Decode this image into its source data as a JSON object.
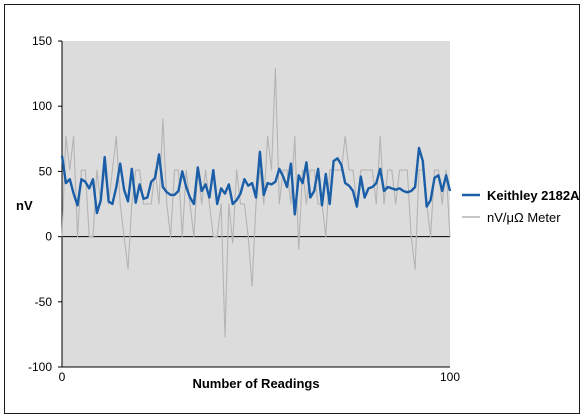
{
  "chart_data": {
    "type": "line",
    "title": "",
    "xlabel": "Number of Readings",
    "ylabel": "nV",
    "xlim": [
      0,
      100
    ],
    "ylim": [
      -100,
      150
    ],
    "x_ticks": [
      "0",
      "100"
    ],
    "y_ticks": [
      "150",
      "100",
      "50",
      "0",
      "-50",
      "-100"
    ],
    "y_tick_values": [
      150,
      100,
      50,
      0,
      -50,
      -100
    ],
    "x_tick_values": [
      0,
      100
    ],
    "zero_line": 0,
    "plot_background": "#dcdcdc",
    "grid": false,
    "legend_position": "right",
    "series": [
      {
        "name": "Keithley 2182A",
        "color": "#1a5ea8",
        "bold": true,
        "x": [
          0,
          1,
          2,
          3,
          4,
          5,
          6,
          7,
          8,
          9,
          10,
          11,
          12,
          13,
          14,
          15,
          16,
          17,
          18,
          19,
          20,
          21,
          22,
          23,
          24,
          25,
          26,
          27,
          28,
          29,
          30,
          31,
          32,
          33,
          34,
          35,
          36,
          37,
          38,
          39,
          40,
          41,
          42,
          43,
          44,
          45,
          46,
          47,
          48,
          49,
          50,
          51,
          52,
          53,
          54,
          55,
          56,
          57,
          58,
          59,
          60,
          61,
          62,
          63,
          64,
          65,
          66,
          67,
          68,
          69,
          70,
          71,
          72,
          73,
          74,
          75,
          76,
          77,
          78,
          79,
          80,
          81,
          82,
          83,
          84,
          85,
          86,
          87,
          88,
          89,
          90,
          91,
          92,
          93,
          94,
          95,
          96,
          97,
          98,
          99,
          100
        ],
        "values": [
          62,
          41,
          44,
          33,
          24,
          44,
          42,
          37,
          44,
          18,
          28,
          61,
          27,
          25,
          38,
          56,
          36,
          27,
          52,
          26,
          40,
          29,
          30,
          42,
          45,
          63,
          38,
          34,
          32,
          32,
          35,
          50,
          38,
          30,
          25,
          53,
          35,
          40,
          30,
          51,
          25,
          37,
          33,
          40,
          25,
          28,
          33,
          44,
          39,
          41,
          30,
          65,
          32,
          41,
          40,
          42,
          52,
          46,
          38,
          56,
          17,
          47,
          41,
          57,
          30,
          35,
          52,
          24,
          48,
          25,
          58,
          60,
          55,
          41,
          39,
          35,
          23,
          46,
          30,
          37,
          38,
          41,
          52,
          35,
          38,
          37,
          36,
          37,
          35,
          34,
          35,
          38,
          68,
          58,
          23,
          28,
          45,
          47,
          35,
          47,
          35
        ]
      },
      {
        "name": "nV/μΩ Meter",
        "color": "#b4b4b4",
        "bold": false,
        "x": [
          0,
          1,
          2,
          3,
          4,
          5,
          6,
          7,
          8,
          9,
          10,
          11,
          12,
          13,
          14,
          15,
          16,
          17,
          18,
          19,
          20,
          21,
          22,
          23,
          24,
          25,
          26,
          27,
          28,
          29,
          30,
          31,
          32,
          33,
          34,
          35,
          36,
          37,
          38,
          39,
          40,
          41,
          42,
          43,
          44,
          45,
          46,
          47,
          48,
          49,
          50,
          51,
          52,
          53,
          54,
          55,
          56,
          57,
          58,
          59,
          60,
          61,
          62,
          63,
          64,
          65,
          66,
          67,
          68,
          69,
          70,
          71,
          72,
          73,
          74,
          75,
          76,
          77,
          78,
          79,
          80,
          81,
          82,
          83,
          84,
          85,
          86,
          87,
          88,
          89,
          90,
          91,
          92,
          93,
          94,
          95,
          96,
          97,
          98,
          99,
          100
        ],
        "values": [
          0,
          77,
          51,
          77,
          0,
          51,
          51,
          0,
          0,
          51,
          25,
          51,
          25,
          51,
          77,
          25,
          0,
          -25,
          25,
          51,
          51,
          25,
          25,
          25,
          51,
          25,
          90,
          25,
          0,
          51,
          51,
          0,
          51,
          25,
          0,
          51,
          25,
          51,
          25,
          0,
          0,
          25,
          -77,
          25,
          -5,
          51,
          25,
          25,
          0,
          -38,
          25,
          51,
          25,
          77,
          51,
          129,
          25,
          51,
          51,
          25,
          77,
          -10,
          51,
          25,
          51,
          51,
          25,
          25,
          0,
          51,
          51,
          51,
          51,
          77,
          51,
          51,
          25,
          51,
          51,
          51,
          51,
          25,
          77,
          25,
          51,
          51,
          25,
          51,
          51,
          51,
          0,
          -25,
          51,
          51,
          25,
          0,
          51,
          51,
          25,
          51,
          0
        ]
      }
    ]
  }
}
